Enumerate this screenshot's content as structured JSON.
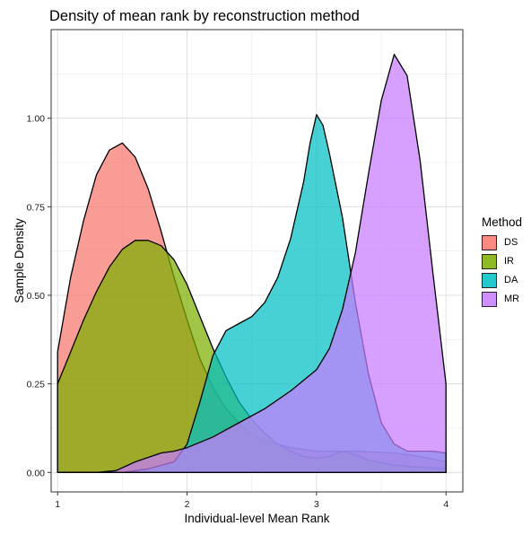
{
  "chart_data": {
    "type": "area",
    "title": "Density of mean rank by reconstruction method",
    "xlabel": "Individual-level Mean Rank",
    "ylabel": "Sample Density",
    "xlim": [
      0.95,
      4.13
    ],
    "ylim": [
      -0.055,
      1.25
    ],
    "x_ticks": [
      1,
      2,
      3,
      4
    ],
    "x_tick_labels": [
      "1",
      "2",
      "3",
      "4"
    ],
    "y_ticks": [
      0,
      0.25,
      0.5,
      0.75,
      1.0
    ],
    "y_tick_labels": [
      "0.00",
      "0.25",
      "0.50",
      "0.75",
      "1.00"
    ],
    "grid": true,
    "legend_title": "Method",
    "legend_position": "right",
    "series": [
      {
        "name": "DS",
        "color": "#F8766D",
        "points": [
          [
            1.0,
            0.34
          ],
          [
            1.1,
            0.55
          ],
          [
            1.2,
            0.71
          ],
          [
            1.3,
            0.84
          ],
          [
            1.4,
            0.91
          ],
          [
            1.5,
            0.93
          ],
          [
            1.6,
            0.89
          ],
          [
            1.7,
            0.8
          ],
          [
            1.8,
            0.68
          ],
          [
            1.9,
            0.55
          ],
          [
            2.0,
            0.43
          ],
          [
            2.1,
            0.32
          ],
          [
            2.2,
            0.24
          ],
          [
            2.3,
            0.18
          ],
          [
            2.4,
            0.14
          ],
          [
            2.5,
            0.11
          ],
          [
            2.6,
            0.09
          ],
          [
            2.8,
            0.07
          ],
          [
            3.0,
            0.06
          ],
          [
            3.3,
            0.06
          ],
          [
            3.6,
            0.055
          ],
          [
            3.8,
            0.045
          ],
          [
            4.0,
            0.03
          ]
        ]
      },
      {
        "name": "IR",
        "color": "#7CAE00",
        "points": [
          [
            1.0,
            0.25
          ],
          [
            1.1,
            0.34
          ],
          [
            1.2,
            0.43
          ],
          [
            1.3,
            0.51
          ],
          [
            1.4,
            0.58
          ],
          [
            1.5,
            0.63
          ],
          [
            1.6,
            0.655
          ],
          [
            1.7,
            0.655
          ],
          [
            1.8,
            0.64
          ],
          [
            1.9,
            0.6
          ],
          [
            2.0,
            0.53
          ],
          [
            2.1,
            0.44
          ],
          [
            2.2,
            0.35
          ],
          [
            2.3,
            0.27
          ],
          [
            2.4,
            0.2
          ],
          [
            2.5,
            0.15
          ],
          [
            2.6,
            0.11
          ],
          [
            2.7,
            0.08
          ],
          [
            2.8,
            0.06
          ],
          [
            2.9,
            0.045
          ],
          [
            3.0,
            0.04
          ],
          [
            3.1,
            0.045
          ],
          [
            3.2,
            0.06
          ],
          [
            3.3,
            0.05
          ],
          [
            3.4,
            0.035
          ],
          [
            3.6,
            0.02
          ],
          [
            3.8,
            0.015
          ],
          [
            4.0,
            0.01
          ]
        ]
      },
      {
        "name": "DA",
        "color": "#00BFC4",
        "points": [
          [
            1.0,
            0.0
          ],
          [
            1.5,
            0.0
          ],
          [
            1.7,
            0.01
          ],
          [
            1.9,
            0.03
          ],
          [
            2.0,
            0.08
          ],
          [
            2.1,
            0.2
          ],
          [
            2.2,
            0.33
          ],
          [
            2.3,
            0.4
          ],
          [
            2.4,
            0.42
          ],
          [
            2.5,
            0.44
          ],
          [
            2.6,
            0.48
          ],
          [
            2.7,
            0.55
          ],
          [
            2.8,
            0.66
          ],
          [
            2.9,
            0.82
          ],
          [
            2.95,
            0.93
          ],
          [
            3.0,
            1.01
          ],
          [
            3.05,
            0.98
          ],
          [
            3.1,
            0.9
          ],
          [
            3.2,
            0.72
          ],
          [
            3.3,
            0.48
          ],
          [
            3.4,
            0.28
          ],
          [
            3.5,
            0.14
          ],
          [
            3.6,
            0.08
          ],
          [
            3.7,
            0.06
          ],
          [
            3.8,
            0.06
          ],
          [
            3.9,
            0.06
          ],
          [
            4.0,
            0.055
          ]
        ]
      },
      {
        "name": "MR",
        "color": "#C77CFF",
        "points": [
          [
            1.0,
            0.0
          ],
          [
            1.3,
            0.0
          ],
          [
            1.45,
            0.005
          ],
          [
            1.6,
            0.03
          ],
          [
            1.8,
            0.055
          ],
          [
            1.9,
            0.06
          ],
          [
            2.0,
            0.07
          ],
          [
            2.2,
            0.1
          ],
          [
            2.4,
            0.14
          ],
          [
            2.6,
            0.18
          ],
          [
            2.8,
            0.23
          ],
          [
            3.0,
            0.29
          ],
          [
            3.1,
            0.35
          ],
          [
            3.2,
            0.46
          ],
          [
            3.3,
            0.62
          ],
          [
            3.4,
            0.84
          ],
          [
            3.5,
            1.05
          ],
          [
            3.6,
            1.18
          ],
          [
            3.7,
            1.12
          ],
          [
            3.8,
            0.88
          ],
          [
            3.9,
            0.56
          ],
          [
            4.0,
            0.25
          ],
          [
            4.0,
            0.0
          ]
        ]
      }
    ]
  }
}
